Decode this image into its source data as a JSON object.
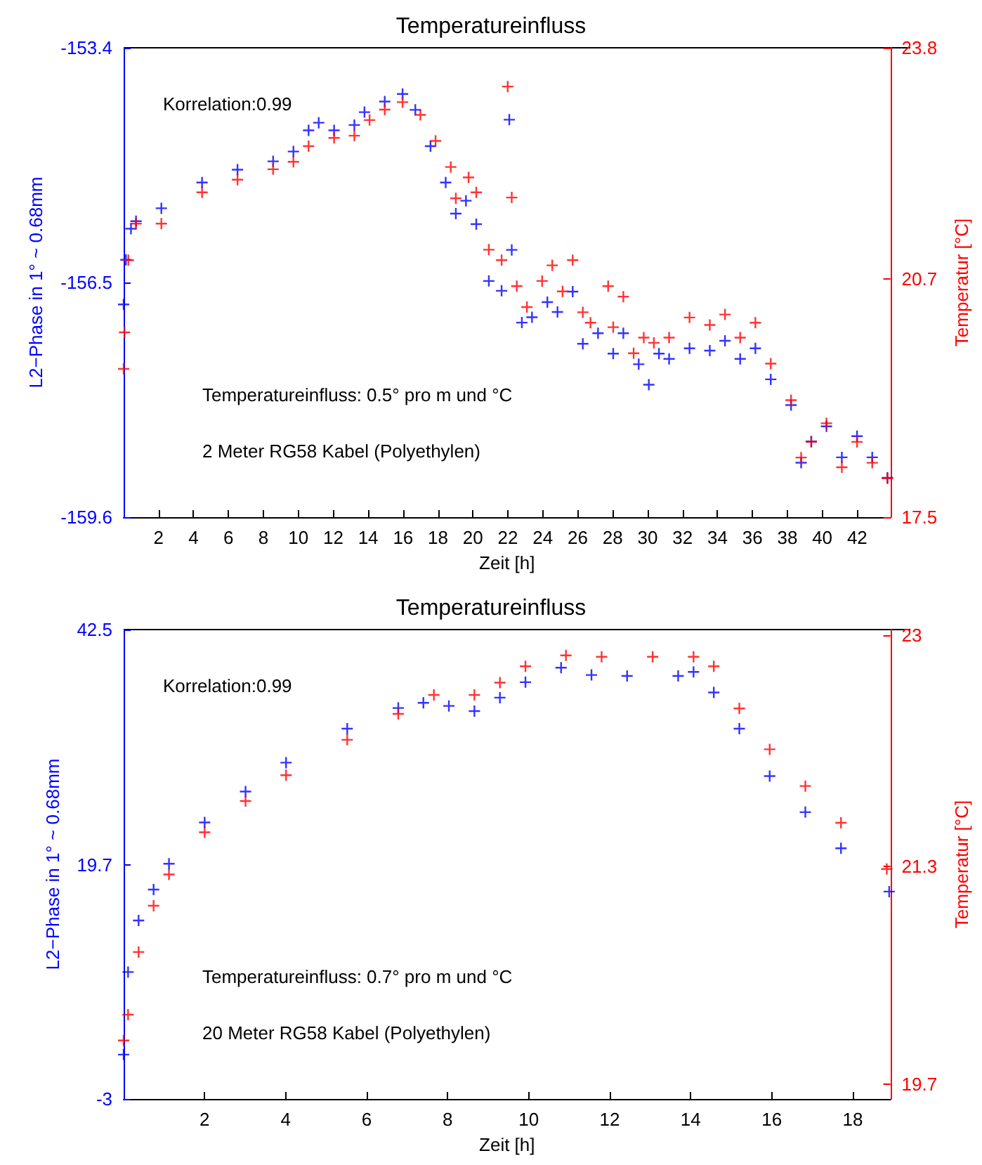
{
  "chart_data": [
    {
      "type": "scatter",
      "title": "Temperatureinfluss",
      "xlabel": "Zeit [h]",
      "ylabel": "L2−Phase in 1° ~ 0.68mm",
      "y2label": "Temperatur [°C]",
      "annotations": [
        "Korrelation:0.99",
        "Temperatureinfluss: 0.5° pro m und °C",
        "2 Meter RG58 Kabel (Polyethylen)"
      ],
      "xlim": [
        0,
        43.9
      ],
      "xticks": [
        2,
        4,
        6,
        8,
        10,
        12,
        14,
        16,
        18,
        20,
        22,
        24,
        26,
        28,
        30,
        32,
        34,
        36,
        38,
        40,
        42
      ],
      "ylim": [
        -159.6,
        -153.4
      ],
      "yticks": [
        -159.6,
        -156.5,
        -153.4
      ],
      "y2lim": [
        17.5,
        23.8
      ],
      "y2ticks": [
        17.5,
        20.7,
        23.8
      ],
      "grid": false,
      "marker": "cross",
      "series": [
        {
          "color": "#0000ff",
          "x": [
            0.0,
            0.13,
            0.42,
            0.71,
            2.16,
            4.49,
            6.52,
            8.56,
            9.72,
            10.59,
            11.17,
            12.05,
            13.21,
            13.79,
            14.95,
            15.97,
            16.7,
            17.57,
            18.44,
            19.02,
            19.6,
            20.19,
            20.91,
            21.64,
            22.08,
            22.22,
            22.8,
            23.38,
            24.26,
            24.84,
            25.71,
            26.29,
            27.16,
            28.03,
            28.61,
            29.49,
            30.07,
            30.65,
            31.23,
            32.4,
            33.56,
            34.43,
            35.3,
            36.17,
            37.05,
            38.21,
            38.79,
            39.37,
            40.24,
            41.12,
            41.99,
            42.86,
            43.73
          ],
          "values": [
            -156.79,
            -156.2,
            -155.79,
            -155.69,
            -155.52,
            -155.18,
            -155.01,
            -154.9,
            -154.77,
            -154.49,
            -154.39,
            -154.49,
            -154.42,
            -154.25,
            -154.11,
            -154.01,
            -154.22,
            -154.7,
            -155.18,
            -155.59,
            -155.42,
            -155.73,
            -156.48,
            -156.61,
            -154.35,
            -156.07,
            -157.03,
            -156.96,
            -156.76,
            -156.89,
            -156.62,
            -157.31,
            -157.17,
            -157.44,
            -157.17,
            -157.58,
            -157.85,
            -157.44,
            -157.51,
            -157.37,
            -157.4,
            -157.27,
            -157.51,
            -157.37,
            -157.78,
            -158.12,
            -158.88,
            -158.6,
            -158.4,
            -158.81,
            -158.53,
            -158.81,
            -159.08
          ]
        },
        {
          "color": "#ff0000",
          "axis": "y2",
          "x": [
            0.0,
            0.05,
            0.27,
            0.71,
            2.16,
            4.49,
            6.52,
            8.56,
            9.72,
            10.59,
            12.05,
            13.21,
            14.08,
            14.95,
            15.97,
            16.99,
            17.86,
            18.73,
            19.02,
            19.75,
            20.19,
            20.91,
            21.64,
            21.99,
            22.22,
            22.51,
            23.09,
            23.96,
            24.54,
            25.13,
            25.71,
            26.29,
            26.73,
            27.74,
            28.03,
            28.61,
            29.2,
            29.78,
            30.36,
            31.23,
            32.4,
            33.56,
            34.43,
            35.3,
            36.17,
            37.05,
            38.21,
            38.79,
            39.37,
            40.24,
            41.12,
            41.99,
            42.86,
            43.73
          ],
          "values": [
            19.49,
            19.98,
            20.95,
            21.44,
            21.44,
            21.86,
            22.03,
            22.17,
            22.27,
            22.48,
            22.59,
            22.62,
            22.83,
            22.97,
            23.07,
            22.9,
            22.55,
            22.2,
            21.78,
            22.06,
            21.86,
            21.09,
            20.95,
            23.28,
            21.79,
            20.6,
            20.32,
            20.67,
            20.88,
            20.53,
            20.95,
            20.25,
            20.11,
            20.6,
            20.05,
            20.46,
            19.7,
            19.91,
            19.84,
            19.91,
            20.18,
            20.08,
            20.22,
            19.91,
            20.11,
            19.56,
            19.07,
            18.3,
            18.51,
            18.76,
            18.17,
            18.51,
            18.23,
            18.02
          ]
        }
      ]
    },
    {
      "type": "scatter",
      "title": "Temperatureinfluss",
      "xlabel": "Zeit [h]",
      "ylabel": "L2−Phase in 1° ~ 0.68mm",
      "y2label": "Temperatur [°C]",
      "annotations": [
        "Korrelation:0.99",
        "Temperatureinfluss: 0.7° pro m und °C",
        "20 Meter RG58 Kabel (Polyethylen)"
      ],
      "xlim": [
        0,
        18.93
      ],
      "xticks": [
        2,
        4,
        6,
        8,
        10,
        12,
        14,
        16,
        18
      ],
      "ylim": [
        -3,
        42.5
      ],
      "yticks": [
        -3,
        19.7,
        42.5
      ],
      "y2lim": [
        19.59,
        23.04
      ],
      "y2ticks": [
        19.7,
        21.3,
        23
      ],
      "grid": false,
      "marker": "cross",
      "series": [
        {
          "color": "#0000ff",
          "x": [
            0.0,
            0.11,
            0.37,
            0.74,
            1.12,
            2.0,
            3.01,
            4.01,
            5.52,
            6.78,
            7.4,
            8.03,
            8.66,
            9.29,
            9.92,
            10.8,
            11.55,
            12.43,
            13.69,
            14.07,
            14.57,
            15.2,
            15.95,
            16.83,
            17.71,
            18.9
          ],
          "values": [
            1.3,
            9.3,
            14.3,
            17.3,
            19.8,
            23.8,
            26.8,
            29.6,
            32.9,
            34.9,
            35.4,
            35.1,
            34.6,
            35.9,
            37.4,
            38.8,
            38.1,
            38.0,
            38.0,
            38.4,
            36.4,
            32.9,
            28.3,
            24.8,
            21.3,
            17.1
          ]
        },
        {
          "color": "#ff0000",
          "axis": "y2",
          "x": [
            0.0,
            0.11,
            0.37,
            0.74,
            1.12,
            2.0,
            3.01,
            4.01,
            5.52,
            6.78,
            7.66,
            8.66,
            9.29,
            9.92,
            10.92,
            11.8,
            13.06,
            14.07,
            14.57,
            15.2,
            15.95,
            16.83,
            17.71,
            18.84
          ],
          "values": [
            20.02,
            20.21,
            20.67,
            21.01,
            21.24,
            21.55,
            21.78,
            21.97,
            22.23,
            22.42,
            22.56,
            22.56,
            22.65,
            22.77,
            22.85,
            22.84,
            22.84,
            22.84,
            22.77,
            22.46,
            22.16,
            21.89,
            21.62,
            21.28
          ]
        }
      ]
    }
  ]
}
